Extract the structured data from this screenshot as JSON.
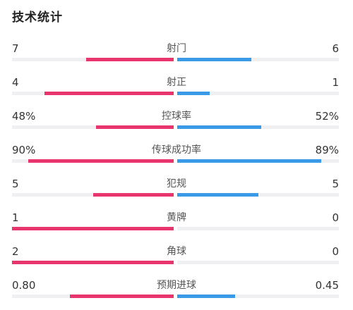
{
  "title": "技术统计",
  "colors": {
    "home_bar": "#e8356e",
    "away_bar": "#3a9ae8",
    "track": "#f0f0f2"
  },
  "stats": [
    {
      "label": "射门",
      "left": "7",
      "right": "6",
      "left_fill": 0.54,
      "right_fill": 0.46
    },
    {
      "label": "射正",
      "left": "4",
      "right": "1",
      "left_fill": 0.8,
      "right_fill": 0.2
    },
    {
      "label": "控球率",
      "left": "48%",
      "right": "52%",
      "left_fill": 0.48,
      "right_fill": 0.52
    },
    {
      "label": "传球成功率",
      "left": "90%",
      "right": "89%",
      "left_fill": 0.9,
      "right_fill": 0.89
    },
    {
      "label": "犯规",
      "left": "5",
      "right": "5",
      "left_fill": 0.5,
      "right_fill": 0.5
    },
    {
      "label": "黄牌",
      "left": "1",
      "right": "0",
      "left_fill": 1.0,
      "right_fill": 0.0
    },
    {
      "label": "角球",
      "left": "2",
      "right": "0",
      "left_fill": 1.0,
      "right_fill": 0.0
    },
    {
      "label": "预期进球",
      "left": "0.80",
      "right": "0.45",
      "left_fill": 0.64,
      "right_fill": 0.36
    }
  ]
}
